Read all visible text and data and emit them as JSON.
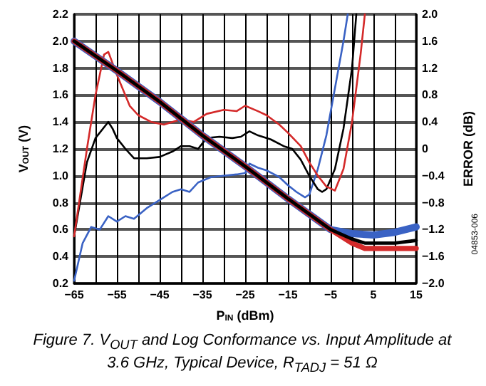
{
  "chart_data": {
    "type": "line",
    "title": "Figure 7. V$_{OUT}$ and Log Conformance vs. Input Amplitude at 3.6 GHz, Typical Device, R$_{TADJ}$ = 51 Ω",
    "xlabel": "P$_{IN}$ (dBm)",
    "ylabel": "V$_{OUT}$ (V)",
    "y2label": "ERROR (dB)",
    "annotations": [
      "04853-006"
    ],
    "xlim": [
      -65,
      15
    ],
    "xticks": [
      {
        "value": -65,
        "label": "−65"
      },
      {
        "value": -60,
        "label": null
      },
      {
        "value": -55,
        "label": "−55"
      },
      {
        "value": -50,
        "label": null
      },
      {
        "value": -45,
        "label": "−45"
      },
      {
        "value": -40,
        "label": null
      },
      {
        "value": -35,
        "label": "−35"
      },
      {
        "value": -30,
        "label": null
      },
      {
        "value": -25,
        "label": "−25"
      },
      {
        "value": -20,
        "label": null
      },
      {
        "value": -15,
        "label": "−15"
      },
      {
        "value": -10,
        "label": null
      },
      {
        "value": -5,
        "label": "−5"
      },
      {
        "value": 0,
        "label": null
      },
      {
        "value": 5,
        "label": "5"
      },
      {
        "value": 10,
        "label": null
      },
      {
        "value": 15,
        "label": "15"
      }
    ],
    "ylim": [
      0.2,
      2.2
    ],
    "yticks": [
      {
        "value": 0.2,
        "label": "0.2"
      },
      {
        "value": 0.4,
        "label": "0.4"
      },
      {
        "value": 0.6,
        "label": "0.6"
      },
      {
        "value": 0.8,
        "label": "0.8"
      },
      {
        "value": 1,
        "label": "1.0"
      },
      {
        "value": 1.2,
        "label": "1.2"
      },
      {
        "value": 1.4,
        "label": "1.4"
      },
      {
        "value": 1.6,
        "label": "1.6"
      },
      {
        "value": 1.8,
        "label": "1.8"
      },
      {
        "value": 2,
        "label": "2.0"
      },
      {
        "value": 2.2,
        "label": "2.2"
      }
    ],
    "y2lim": [
      -2,
      2
    ],
    "y2ticks": [
      {
        "value": -2,
        "label": "−2.0"
      },
      {
        "value": -1.6,
        "label": "−1.6"
      },
      {
        "value": -1.2,
        "label": "−1.2"
      },
      {
        "value": -0.8,
        "label": "−0.8"
      },
      {
        "value": -0.4,
        "label": "−0.4"
      },
      {
        "value": 0,
        "label": "0"
      },
      {
        "value": 0.4,
        "label": "0.4"
      },
      {
        "value": 0.8,
        "label": "0.8"
      },
      {
        "value": 1.2,
        "label": "1.2"
      },
      {
        "value": 1.6,
        "label": "1.6"
      },
      {
        "value": 2,
        "label": "2.0"
      }
    ],
    "grid": true,
    "marker": "none",
    "line_style": "solid",
    "series": [
      {
        "axis": "y2",
        "color": "#3a62c4",
        "x": [
          -65,
          -63,
          -61,
          -59,
          -57,
          -55,
          -53,
          -51,
          -48,
          -45,
          -42,
          -40,
          -38,
          -36,
          -33,
          -30,
          -27,
          -25,
          -24,
          -22,
          -20,
          -17,
          -15,
          -13,
          -11,
          -10,
          -8,
          -6,
          -4,
          -2,
          -1
        ],
        "values": [
          -1.96,
          -1.4,
          -1.16,
          -1.2,
          -1.0,
          -1.08,
          -1.0,
          -1.04,
          -0.88,
          -0.76,
          -0.64,
          -0.6,
          -0.64,
          -0.5,
          -0.42,
          -0.4,
          -0.38,
          -0.36,
          -0.22,
          -0.28,
          -0.32,
          -0.42,
          -0.54,
          -0.64,
          -0.72,
          -0.68,
          -0.3,
          0.2,
          0.9,
          1.6,
          2.0
        ]
      },
      {
        "axis": "y2",
        "color": "#000000",
        "x": [
          -65,
          -62,
          -60,
          -58,
          -57,
          -56,
          -55,
          -53,
          -51,
          -48,
          -45,
          -42,
          -40,
          -38,
          -36,
          -34,
          -31,
          -28,
          -26,
          -24,
          -22,
          -19,
          -16,
          -14,
          -12,
          -10,
          -8,
          -7,
          -6,
          -4,
          -2,
          0,
          1
        ],
        "values": [
          -1.3,
          -0.2,
          0.16,
          0.32,
          0.4,
          0.3,
          0.16,
          0,
          -0.14,
          -0.14,
          -0.12,
          -0.04,
          0.04,
          0.04,
          0,
          0.16,
          0.18,
          0.16,
          0.18,
          0.26,
          0.2,
          0.14,
          0.04,
          0,
          -0.16,
          -0.4,
          -0.6,
          -0.64,
          -0.6,
          -0.3,
          0.3,
          1.2,
          2.0
        ]
      },
      {
        "axis": "y2",
        "color": "#d42a2a",
        "x": [
          -65,
          -62,
          -60,
          -58,
          -57,
          -55,
          -52,
          -50,
          -47,
          -44,
          -40,
          -37,
          -34,
          -30,
          -27,
          -25,
          -22,
          -20,
          -17,
          -15,
          -12,
          -10,
          -8,
          -6,
          -4,
          -2,
          0,
          2,
          3
        ],
        "values": [
          -1.3,
          0,
          0.8,
          1.4,
          1.44,
          1.1,
          0.64,
          0.5,
          0.4,
          0.36,
          0.44,
          0.4,
          0.52,
          0.58,
          0.56,
          0.64,
          0.56,
          0.5,
          0.36,
          0.24,
          0.04,
          -0.2,
          -0.4,
          -0.56,
          -0.62,
          -0.3,
          0.4,
          1.4,
          2.0
        ]
      },
      {
        "axis": "y",
        "color": "#3a62c4",
        "x": [
          -65,
          -55,
          -45,
          -35,
          -25,
          -15,
          -5,
          0,
          5,
          10,
          15
        ],
        "values": [
          2.0,
          1.78,
          1.55,
          1.3,
          1.07,
          0.83,
          0.6,
          0.57,
          0.56,
          0.58,
          0.62
        ]
      },
      {
        "axis": "y",
        "color": "#d42a2a",
        "x": [
          -65,
          -55,
          -45,
          -35,
          -25,
          -15,
          -5,
          0,
          3,
          15
        ],
        "values": [
          2.0,
          1.78,
          1.55,
          1.3,
          1.07,
          0.83,
          0.6,
          0.5,
          0.46,
          0.46
        ]
      },
      {
        "axis": "y",
        "color": "#000000",
        "x": [
          -65,
          -55,
          -45,
          -35,
          -25,
          -15,
          -5,
          0,
          3,
          10,
          15
        ],
        "values": [
          2.0,
          1.78,
          1.55,
          1.3,
          1.07,
          0.83,
          0.6,
          0.53,
          0.5,
          0.5,
          0.52
        ]
      }
    ]
  }
}
